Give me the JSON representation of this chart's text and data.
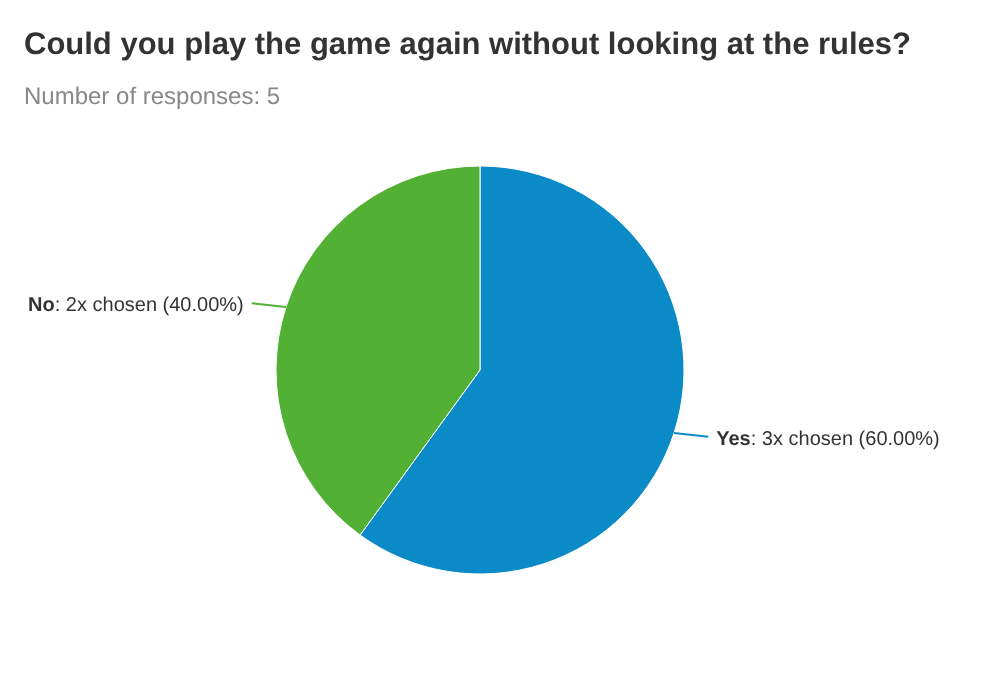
{
  "chart_data": {
    "type": "pie",
    "title": "Could you play the game again without looking at the rules?",
    "subtitle": "Number of responses: 5",
    "categories": [
      "Yes",
      "No"
    ],
    "values": [
      3,
      2
    ],
    "colors": [
      "#0a8ac6",
      "#52b135"
    ],
    "value_labels": [
      ": 3x chosen (60.00%)",
      ": 2x chosen (40.00%)"
    ],
    "legend": false
  }
}
